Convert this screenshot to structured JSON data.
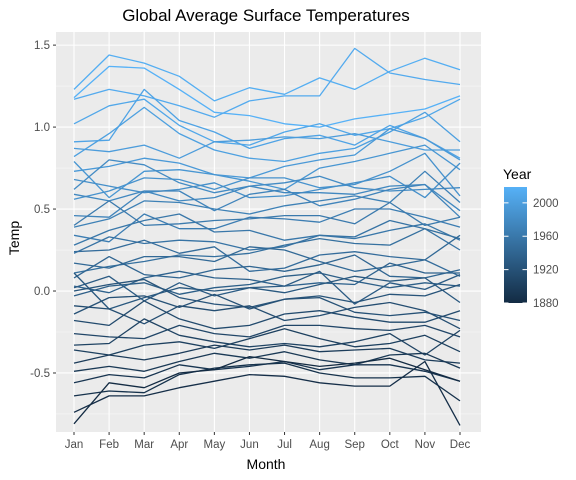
{
  "chart_data": {
    "type": "line",
    "title": "Global Average Surface Temperatures",
    "xlabel": "Month",
    "ylabel": "Temp",
    "x": [
      "Jan",
      "Feb",
      "Mar",
      "Apr",
      "May",
      "Jun",
      "Jul",
      "Aug",
      "Sep",
      "Oct",
      "Nov",
      "Dec"
    ],
    "y_ticks": [
      -0.5,
      0.0,
      0.5,
      1.0,
      1.5
    ],
    "y_tick_labels": [
      "-0.5",
      "0.0",
      "0.5",
      "1.0",
      "1.5"
    ],
    "ylim": [
      -0.86,
      1.58
    ],
    "grid": true,
    "legend": {
      "title": "Year",
      "placement": "right",
      "year_range": [
        1880,
        2019
      ],
      "ticks": [
        "1880",
        "1920",
        "1960",
        "2000"
      ],
      "color_low": "#132B43",
      "color_high": "#56B1F7"
    },
    "series": [
      {
        "values": [
          1.18,
          1.37,
          1.36,
          1.23,
          1.09,
          1.07,
          1.02,
          1.0,
          1.05,
          1.08,
          1.11,
          1.19
        ]
      },
      {
        "values": [
          1.23,
          1.44,
          1.39,
          1.31,
          1.16,
          1.24,
          1.2,
          1.3,
          1.23,
          1.34,
          1.42,
          1.35
        ]
      },
      {
        "values": [
          1.17,
          1.23,
          1.19,
          1.13,
          1.06,
          1.16,
          1.19,
          1.19,
          1.48,
          1.33,
          1.29,
          1.26
        ]
      },
      {
        "values": [
          1.02,
          1.13,
          1.17,
          1.01,
          0.91,
          0.89,
          0.97,
          1.02,
          0.95,
          0.99,
          1.06,
          1.17
        ]
      },
      {
        "values": [
          0.91,
          0.92,
          1.23,
          1.04,
          0.97,
          0.87,
          0.93,
          0.95,
          0.89,
          1.01,
          0.93,
          0.81
        ]
      },
      {
        "values": [
          0.82,
          0.96,
          1.12,
          0.96,
          0.86,
          0.81,
          0.79,
          0.84,
          0.87,
          0.97,
          1.09,
          0.91
        ]
      },
      {
        "values": [
          0.87,
          0.85,
          0.89,
          0.81,
          0.91,
          0.92,
          0.94,
          0.93,
          0.96,
          0.91,
          0.86,
          0.86
        ]
      },
      {
        "values": [
          0.73,
          0.76,
          0.81,
          0.78,
          0.71,
          0.69,
          0.76,
          0.8,
          0.83,
          0.99,
          0.93,
          0.8
        ]
      },
      {
        "values": [
          0.79,
          0.57,
          0.73,
          0.74,
          0.71,
          0.67,
          0.62,
          0.75,
          0.79,
          0.84,
          0.89,
          0.74
        ]
      },
      {
        "values": [
          0.56,
          0.61,
          0.69,
          0.68,
          0.62,
          0.69,
          0.69,
          0.63,
          0.65,
          0.73,
          0.84,
          0.58
        ]
      },
      {
        "values": [
          0.68,
          0.64,
          0.6,
          0.62,
          0.66,
          0.57,
          0.58,
          0.62,
          0.66,
          0.7,
          0.57,
          0.78
        ]
      },
      {
        "values": [
          0.62,
          0.8,
          0.77,
          0.66,
          0.6,
          0.64,
          0.66,
          0.7,
          0.63,
          0.61,
          0.62,
          0.63
        ]
      },
      {
        "values": [
          0.59,
          0.55,
          0.61,
          0.55,
          0.57,
          0.64,
          0.6,
          0.6,
          0.59,
          0.64,
          0.65,
          0.49
        ]
      },
      {
        "values": [
          0.46,
          0.45,
          0.61,
          0.61,
          0.49,
          0.59,
          0.62,
          0.52,
          0.56,
          0.62,
          0.65,
          0.45
        ]
      },
      {
        "values": [
          0.39,
          0.44,
          0.55,
          0.54,
          0.5,
          0.47,
          0.52,
          0.55,
          0.58,
          0.54,
          0.73,
          0.54
        ]
      },
      {
        "values": [
          0.34,
          0.3,
          0.47,
          0.38,
          0.38,
          0.45,
          0.44,
          0.42,
          0.5,
          0.5,
          0.45,
          0.39
        ]
      },
      {
        "values": [
          0.4,
          0.55,
          0.4,
          0.41,
          0.43,
          0.44,
          0.46,
          0.46,
          0.41,
          0.54,
          0.4,
          0.45
        ]
      },
      {
        "values": [
          0.28,
          0.37,
          0.43,
          0.47,
          0.36,
          0.37,
          0.31,
          0.34,
          0.32,
          0.37,
          0.41,
          0.31
        ]
      },
      {
        "values": [
          0.23,
          0.33,
          0.29,
          0.31,
          0.3,
          0.25,
          0.27,
          0.34,
          0.33,
          0.43,
          0.38,
          0.25
        ]
      },
      {
        "values": [
          0.11,
          0.15,
          0.18,
          0.22,
          0.21,
          0.23,
          0.28,
          0.32,
          0.29,
          0.28,
          0.38,
          0.32
        ]
      },
      {
        "values": [
          0.24,
          0.25,
          0.31,
          0.23,
          0.27,
          0.12,
          0.14,
          0.22,
          0.24,
          0.21,
          0.19,
          0.09
        ]
      },
      {
        "values": [
          0.17,
          0.14,
          0.21,
          0.21,
          0.18,
          0.27,
          0.25,
          0.18,
          0.12,
          0.15,
          0.19,
          0.34
        ]
      },
      {
        "values": [
          0.08,
          0.21,
          0.1,
          0.08,
          0.13,
          0.15,
          0.12,
          0.16,
          0.22,
          0.09,
          0.08,
          0.13
        ]
      },
      {
        "values": [
          0.03,
          -0.01,
          0.08,
          0.12,
          0.08,
          0.07,
          0.03,
          0.05,
          0.04,
          0.17,
          0.11,
          0.11
        ]
      },
      {
        "values": [
          -0.03,
          0.03,
          0.05,
          -0.02,
          0.02,
          0.04,
          0.09,
          0.11,
          0.06,
          0.02,
          0.05,
          0.03
        ]
      },
      {
        "values": [
          0.02,
          0.09,
          -0.06,
          0.05,
          -0.03,
          0.02,
          0.03,
          0.12,
          -0.08,
          0.05,
          0.01,
          0.1
        ]
      },
      {
        "values": [
          0.11,
          -0.11,
          -0.04,
          0.02,
          0.0,
          0.02,
          -0.01,
          0.04,
          0.09,
          0.06,
          0.08,
          -0.07
        ]
      },
      {
        "values": [
          0.0,
          0.04,
          0.07,
          -0.04,
          -0.08,
          -0.1,
          -0.05,
          -0.03,
          -0.07,
          -0.02,
          -0.03,
          0.04
        ]
      },
      {
        "values": [
          -0.14,
          -0.04,
          -0.03,
          -0.1,
          -0.02,
          -0.11,
          -0.05,
          -0.04,
          -0.13,
          -0.15,
          -0.13,
          -0.18
        ]
      },
      {
        "values": [
          -0.09,
          -0.11,
          -0.2,
          -0.09,
          -0.12,
          -0.09,
          -0.18,
          -0.15,
          -0.1,
          -0.07,
          -0.12,
          -0.23
        ]
      },
      {
        "values": [
          -0.18,
          -0.21,
          -0.06,
          -0.17,
          -0.23,
          -0.21,
          -0.14,
          -0.12,
          -0.16,
          -0.19,
          -0.19,
          -0.12
        ]
      },
      {
        "values": [
          -0.26,
          -0.28,
          -0.29,
          -0.21,
          -0.26,
          -0.28,
          -0.21,
          -0.21,
          -0.23,
          -0.24,
          -0.21,
          -0.28
        ]
      },
      {
        "values": [
          -0.33,
          -0.32,
          -0.17,
          -0.27,
          -0.31,
          -0.34,
          -0.32,
          -0.34,
          -0.31,
          -0.26,
          -0.39,
          -0.24
        ]
      },
      {
        "values": [
          -0.36,
          -0.39,
          -0.33,
          -0.31,
          -0.35,
          -0.29,
          -0.23,
          -0.29,
          -0.34,
          -0.32,
          -0.27,
          -0.37
        ]
      },
      {
        "values": [
          -0.44,
          -0.39,
          -0.42,
          -0.38,
          -0.33,
          -0.36,
          -0.33,
          -0.37,
          -0.36,
          -0.35,
          -0.42,
          -0.44
        ]
      },
      {
        "values": [
          -0.49,
          -0.46,
          -0.49,
          -0.43,
          -0.38,
          -0.41,
          -0.37,
          -0.42,
          -0.45,
          -0.39,
          -0.38,
          -0.47
        ]
      },
      {
        "values": [
          -0.56,
          -0.51,
          -0.53,
          -0.45,
          -0.48,
          -0.46,
          -0.43,
          -0.48,
          -0.45,
          -0.45,
          -0.49,
          -0.55
        ]
      },
      {
        "values": [
          -0.64,
          -0.61,
          -0.62,
          -0.51,
          -0.47,
          -0.45,
          -0.44,
          -0.5,
          -0.53,
          -0.53,
          -0.52,
          -0.67
        ]
      },
      {
        "values": [
          -0.74,
          -0.64,
          -0.64,
          -0.59,
          -0.55,
          -0.51,
          -0.52,
          -0.56,
          -0.58,
          -0.58,
          -0.43,
          -0.82
        ]
      },
      {
        "values": [
          -0.81,
          -0.56,
          -0.59,
          -0.5,
          -0.48,
          -0.4,
          -0.43,
          -0.46,
          -0.44,
          -0.41,
          -0.48,
          -0.55
        ]
      }
    ]
  }
}
